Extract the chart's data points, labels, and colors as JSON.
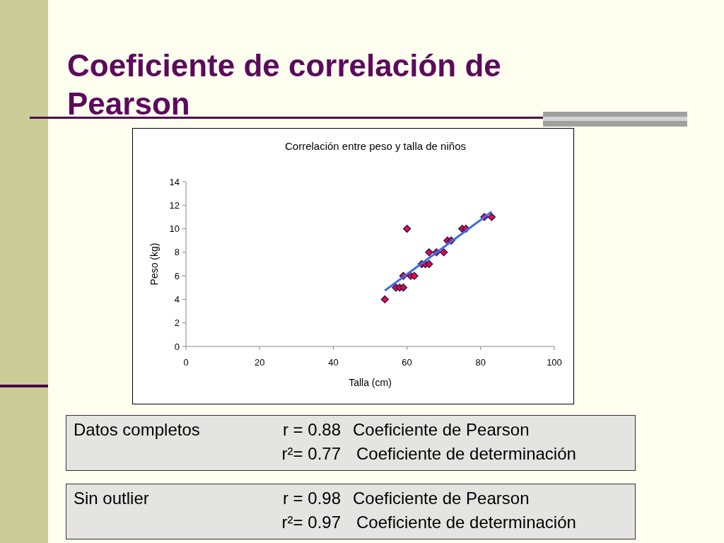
{
  "chart_data": {
    "type": "scatter",
    "title": "Coeficiente de correlación de Pearson",
    "subtitle": "Correlación entre peso y talla de niños",
    "xlabel": "Talla (cm)",
    "ylabel": "Peso (kg)",
    "xlim": [
      0,
      100
    ],
    "xticks": [
      0,
      20,
      40,
      60,
      80,
      100
    ],
    "ylim": [
      0,
      14
    ],
    "yticks": [
      0,
      2,
      4,
      6,
      8,
      10,
      12,
      14
    ],
    "marker": "diamond",
    "series": [
      {
        "color": "#e0103c",
        "x": [
          54,
          57,
          58,
          59,
          59,
          60,
          61,
          62,
          64,
          65,
          66,
          66,
          68,
          70,
          71,
          72,
          75,
          76,
          81,
          83
        ],
        "values": [
          4,
          5,
          5,
          5,
          6,
          10,
          6,
          6,
          7,
          7,
          7,
          8,
          8,
          8,
          9,
          9,
          10,
          10,
          11,
          11
        ]
      },
      {
        "type": "line",
        "color": "#3c6ee6",
        "marker": "none",
        "x": [
          54,
          83
        ],
        "values": [
          4.75,
          11.45
        ]
      }
    ],
    "annotations": [
      "Datos completos",
      "r = 0.88",
      "Coeficiente de Pearson",
      "r²= 0.77",
      "Coeficiente de determinación",
      "Sin outlier",
      "r = 0.98",
      "Coeficiente de Pearson",
      "r²= 0.97",
      "Coeficiente de determinación"
    ]
  }
}
